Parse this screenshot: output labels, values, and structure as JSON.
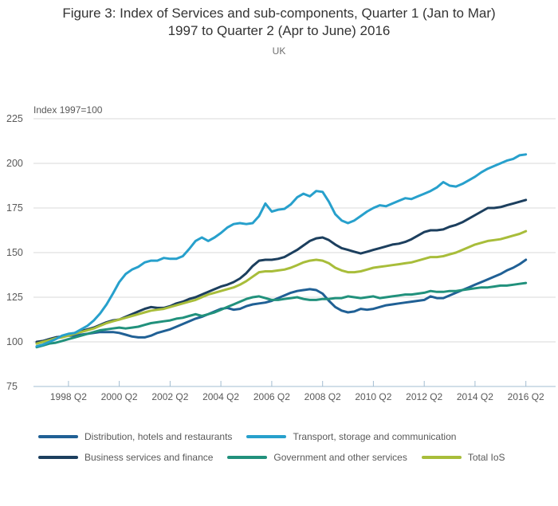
{
  "header": {
    "title_line1": "Figure 3: Index of Services and sub-components, Quarter 1 (Jan to Mar)",
    "title_line2": "1997 to Quarter 2 (Apr to June) 2016",
    "subtitle": "UK"
  },
  "chart_data": {
    "type": "line",
    "axis_label": "Index 1997=100",
    "ylim": [
      75,
      225
    ],
    "yticks": [
      75,
      100,
      125,
      150,
      175,
      200,
      225
    ],
    "grid": "horizontal",
    "legend_position": "bottom",
    "x_quarters": [
      "1997 Q1",
      "1997 Q2",
      "1997 Q3",
      "1997 Q4",
      "1998 Q1",
      "1998 Q2",
      "1998 Q3",
      "1998 Q4",
      "1999 Q1",
      "1999 Q2",
      "1999 Q3",
      "1999 Q4",
      "2000 Q1",
      "2000 Q2",
      "2000 Q3",
      "2000 Q4",
      "2001 Q1",
      "2001 Q2",
      "2001 Q3",
      "2001 Q4",
      "2002 Q1",
      "2002 Q2",
      "2002 Q3",
      "2002 Q4",
      "2003 Q1",
      "2003 Q2",
      "2003 Q3",
      "2003 Q4",
      "2004 Q1",
      "2004 Q2",
      "2004 Q3",
      "2004 Q4",
      "2005 Q1",
      "2005 Q2",
      "2005 Q3",
      "2005 Q4",
      "2006 Q1",
      "2006 Q2",
      "2006 Q3",
      "2006 Q4",
      "2007 Q1",
      "2007 Q2",
      "2007 Q3",
      "2007 Q4",
      "2008 Q1",
      "2008 Q2",
      "2008 Q3",
      "2008 Q4",
      "2009 Q1",
      "2009 Q2",
      "2009 Q3",
      "2009 Q4",
      "2010 Q1",
      "2010 Q2",
      "2010 Q3",
      "2010 Q4",
      "2011 Q1",
      "2011 Q2",
      "2011 Q3",
      "2011 Q4",
      "2012 Q1",
      "2012 Q2",
      "2012 Q3",
      "2012 Q4",
      "2013 Q1",
      "2013 Q2",
      "2013 Q3",
      "2013 Q4",
      "2014 Q1",
      "2014 Q2",
      "2014 Q3",
      "2014 Q4",
      "2015 Q1",
      "2015 Q2",
      "2015 Q3",
      "2015 Q4",
      "2016 Q1",
      "2016 Q2"
    ],
    "xtick_labels": [
      "1998 Q2",
      "2000 Q2",
      "2002 Q2",
      "2004 Q2",
      "2006 Q2",
      "2008 Q2",
      "2010 Q2",
      "2012 Q2",
      "2014 Q2",
      "2016 Q2"
    ],
    "xtick_indices": [
      5,
      13,
      21,
      29,
      37,
      45,
      53,
      61,
      69,
      77
    ],
    "draw_order": [
      0,
      3,
      2,
      4,
      1
    ],
    "series": [
      {
        "name": "Distribution, hotels and restaurants",
        "color": "#206095",
        "values": [
          99.5,
          100.5,
          101.5,
          102.5,
          103,
          103.5,
          103.5,
          104,
          104.5,
          105,
          105.5,
          105.5,
          105.5,
          105,
          104,
          103,
          102.5,
          102.5,
          103.5,
          105,
          106,
          107,
          108.5,
          110,
          111.5,
          113,
          114,
          115.5,
          117,
          118.5,
          119,
          118,
          118.5,
          120,
          121,
          121.5,
          122,
          123,
          124.5,
          126,
          127.5,
          128.5,
          129,
          129.5,
          129,
          127,
          123,
          119.5,
          117.5,
          116.5,
          117,
          118.5,
          118,
          118.5,
          119.5,
          120.5,
          121,
          121.5,
          122,
          122.5,
          123,
          123.5,
          125.5,
          124.5,
          124.5,
          126,
          127.5,
          129,
          130.5,
          132,
          133.5,
          135,
          136.5,
          138,
          140,
          141.5,
          143.5,
          146
        ]
      },
      {
        "name": "Transport, storage and communication",
        "color": "#27a0cc",
        "values": [
          97.5,
          98.5,
          100,
          101.5,
          103.5,
          104.5,
          105,
          107,
          109,
          112,
          116,
          121,
          127,
          133.5,
          138,
          140.5,
          142,
          144.5,
          145.5,
          145.5,
          147,
          146.5,
          146.5,
          148,
          152,
          156.5,
          158.5,
          156.5,
          158.5,
          161,
          164,
          166,
          166.5,
          166,
          166.5,
          170.5,
          177.5,
          173,
          174,
          174.5,
          177,
          181,
          183,
          181.5,
          184.5,
          184,
          178.5,
          171.5,
          168,
          166.5,
          168,
          170.5,
          173,
          175,
          176.5,
          176,
          177.5,
          179,
          180.5,
          180,
          181.5,
          183,
          184.5,
          186.5,
          189.5,
          187.5,
          187,
          188.5,
          190.5,
          192.5,
          195,
          197,
          198.5,
          200,
          201.5,
          202.5,
          204.5,
          205
        ]
      },
      {
        "name": "Business services and finance",
        "color": "#1c3f5e",
        "values": [
          100,
          100.5,
          101.5,
          102.5,
          103,
          104,
          105,
          106,
          107,
          108,
          109.5,
          111,
          112,
          112.5,
          114,
          115.5,
          117,
          118.5,
          119.5,
          119,
          119,
          120,
          121.5,
          122.5,
          124,
          125,
          126.5,
          128,
          129.5,
          131,
          132,
          133.5,
          135.5,
          138.5,
          142.5,
          145.5,
          146,
          146,
          146.5,
          147.5,
          149.5,
          151.5,
          154,
          156.5,
          158,
          158.5,
          157,
          154.5,
          152.5,
          151.5,
          150.5,
          149.5,
          150.5,
          151.5,
          152.5,
          153.5,
          154.5,
          155,
          156,
          157.5,
          159.5,
          161.5,
          162.5,
          162.5,
          163,
          164.5,
          165.5,
          167,
          169,
          171,
          173,
          175,
          175,
          175.5,
          176.5,
          177.5,
          178.5,
          179.5
        ]
      },
      {
        "name": "Government and other services",
        "color": "#21917c",
        "values": [
          97,
          98,
          99,
          99.5,
          100.5,
          101.5,
          102.5,
          103.5,
          104.5,
          105.5,
          106.5,
          107,
          107.5,
          108,
          107.5,
          108,
          108.5,
          109.5,
          110.5,
          111,
          111.5,
          112,
          113,
          113.5,
          114.5,
          115.5,
          114.5,
          115.5,
          116.5,
          118,
          119.5,
          121,
          122.5,
          124,
          125,
          125.5,
          124.5,
          123.5,
          123.5,
          124,
          124.5,
          125,
          124,
          123.5,
          123.5,
          124,
          124,
          124.5,
          124.5,
          125.5,
          125,
          124.5,
          125,
          125.5,
          124.5,
          125,
          125.5,
          126,
          126.5,
          126.5,
          127,
          127.5,
          128.5,
          128,
          128,
          128.5,
          128.5,
          129,
          129.5,
          130,
          130.5,
          130.5,
          131,
          131.5,
          131.5,
          132,
          132.5,
          133
        ]
      },
      {
        "name": "Total IoS",
        "color": "#a8bd3a",
        "values": [
          99,
          100,
          101,
          102,
          102.5,
          103.5,
          104.5,
          105.5,
          106.5,
          107.5,
          109,
          110.5,
          111.5,
          112.5,
          113.5,
          114.5,
          115.5,
          116.5,
          117.5,
          118,
          118.5,
          119.5,
          120.5,
          121.5,
          122.5,
          123.5,
          125,
          126.5,
          127.5,
          128.5,
          129.5,
          130.5,
          132,
          134,
          136.5,
          139,
          139.5,
          139.5,
          140,
          140.5,
          141.5,
          143,
          144.5,
          145.5,
          146,
          145.5,
          144,
          141.5,
          140,
          139,
          139,
          139.5,
          140.5,
          141.5,
          142,
          142.5,
          143,
          143.5,
          144,
          144.5,
          145.5,
          146.5,
          147.5,
          147.5,
          148,
          149,
          150,
          151.5,
          153,
          154.5,
          155.5,
          156.5,
          157,
          157.5,
          158.5,
          159.5,
          160.5,
          162
        ]
      }
    ]
  },
  "colors": {
    "gridline": "#d9d9d9",
    "axis": "#a3bdd1",
    "tick_text": "#595959",
    "title_text": "#333333"
  }
}
